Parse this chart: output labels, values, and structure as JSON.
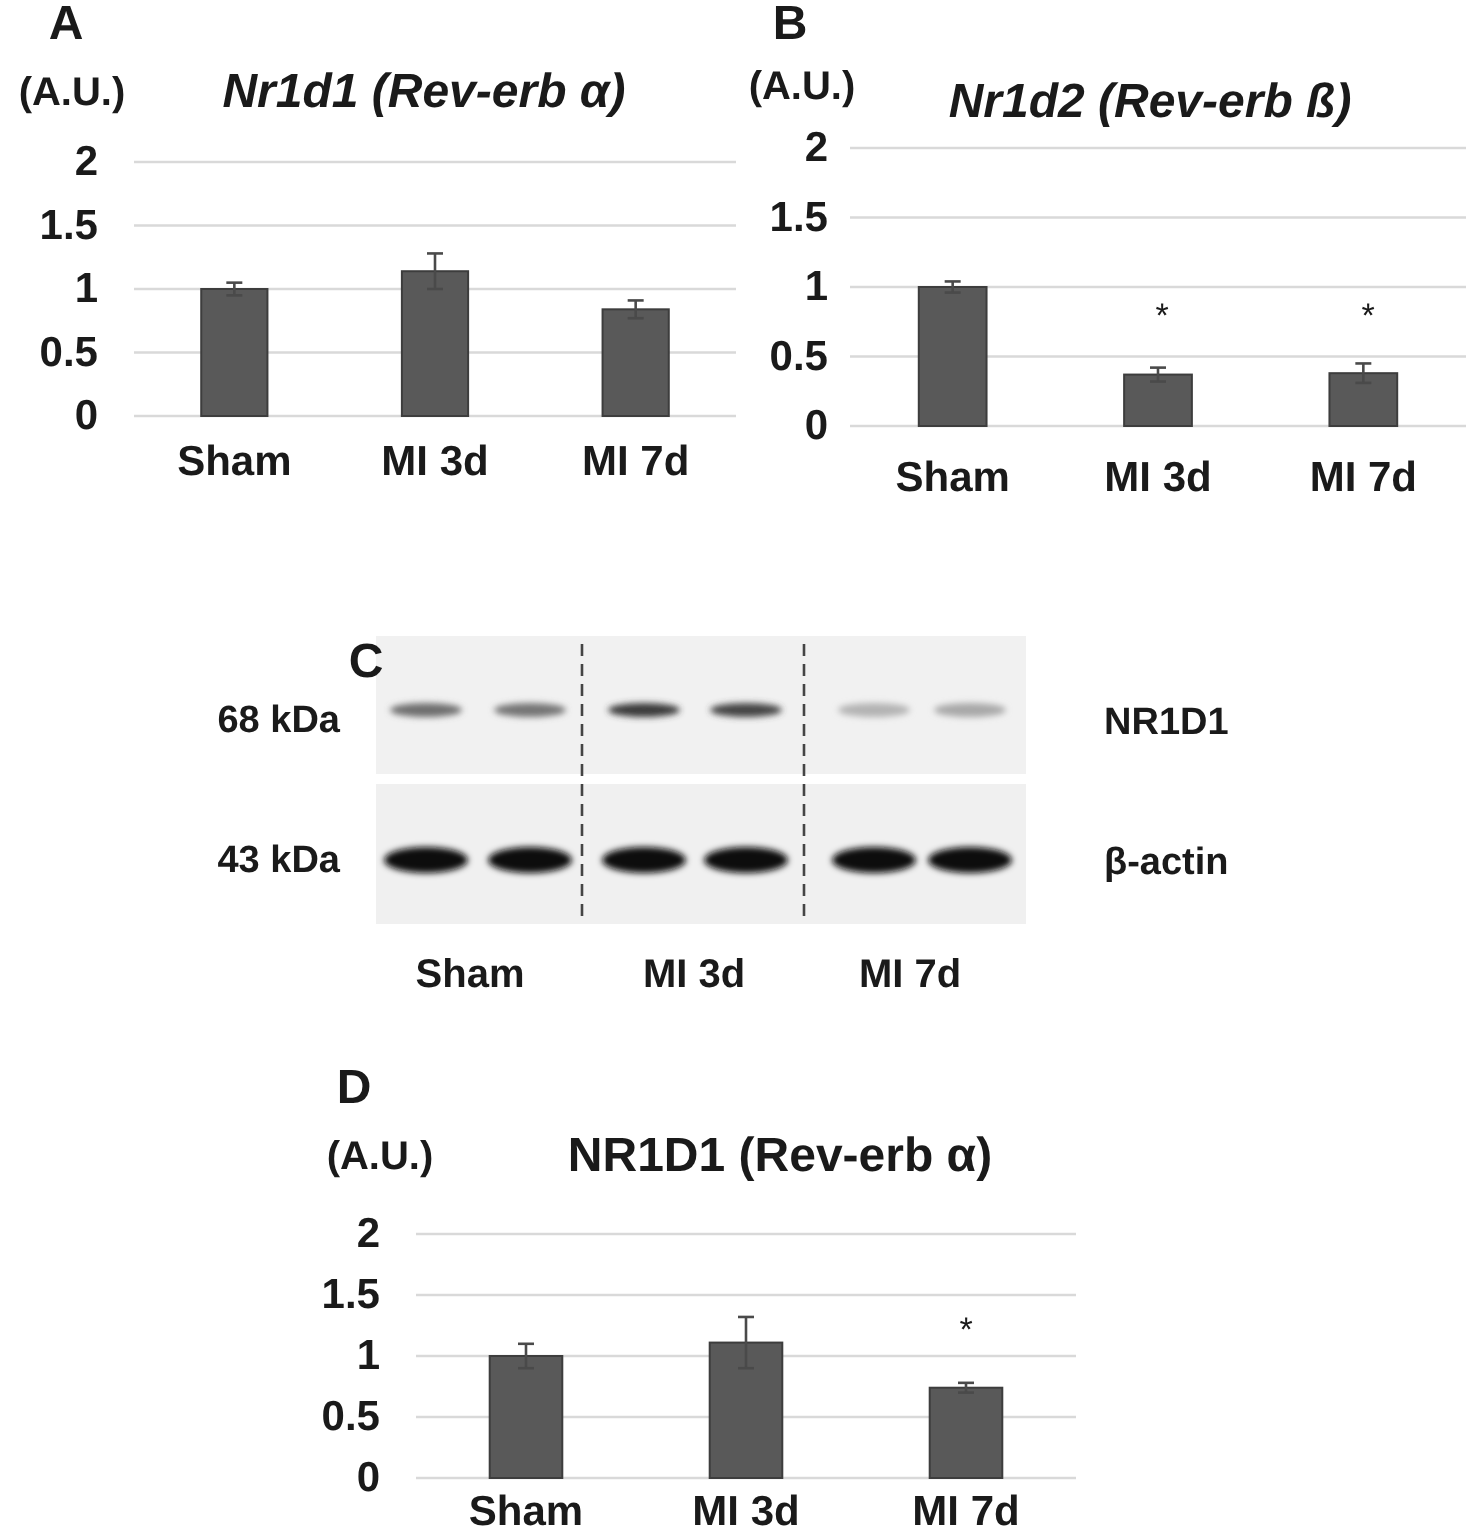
{
  "chart_data": [
    {
      "type": "bar",
      "title": "Nr1d1 (Rev-erb α)",
      "ylabel": "(A.U.)",
      "categories": [
        "Sham",
        "MI 3d",
        "MI 7d"
      ],
      "values": [
        1.0,
        1.14,
        0.84
      ],
      "errors": [
        0.05,
        0.14,
        0.07
      ],
      "color": "#595959",
      "ylim": [
        0,
        2
      ],
      "yticks": [
        0,
        0.5,
        1,
        1.5,
        2
      ],
      "grid": "y",
      "annotations": [
        "A"
      ]
    },
    {
      "type": "bar",
      "title": "Nr1d2 (Rev-erb ß)",
      "ylabel": "(A.U.)",
      "categories": [
        "Sham",
        "MI 3d",
        "MI 7d"
      ],
      "values": [
        1.0,
        0.37,
        0.38
      ],
      "errors": [
        0.04,
        0.05,
        0.07
      ],
      "color": "#595959",
      "ylim": [
        0,
        2
      ],
      "yticks": [
        0,
        0.5,
        1,
        1.5,
        2
      ],
      "grid": "y",
      "annotations": [
        "B",
        "*",
        "*"
      ]
    },
    {
      "type": "other",
      "annotations": [
        "C",
        "68 kDa",
        "43 kDa",
        "NR1D1",
        "β-actin",
        "Sham",
        "MI 3d",
        "MI 7d"
      ]
    },
    {
      "type": "bar",
      "title": "NR1D1 (Rev-erb α)",
      "ylabel": "(A.U.)",
      "categories": [
        "Sham",
        "MI 3d",
        "MI 7d"
      ],
      "values": [
        1.0,
        1.11,
        0.74
      ],
      "errors": [
        0.1,
        0.21,
        0.04
      ],
      "color": "#595959",
      "ylim": [
        0,
        2
      ],
      "yticks": [
        0,
        0.5,
        1,
        1.5,
        2
      ],
      "grid": "y",
      "annotations": [
        "D",
        "*"
      ]
    }
  ]
}
